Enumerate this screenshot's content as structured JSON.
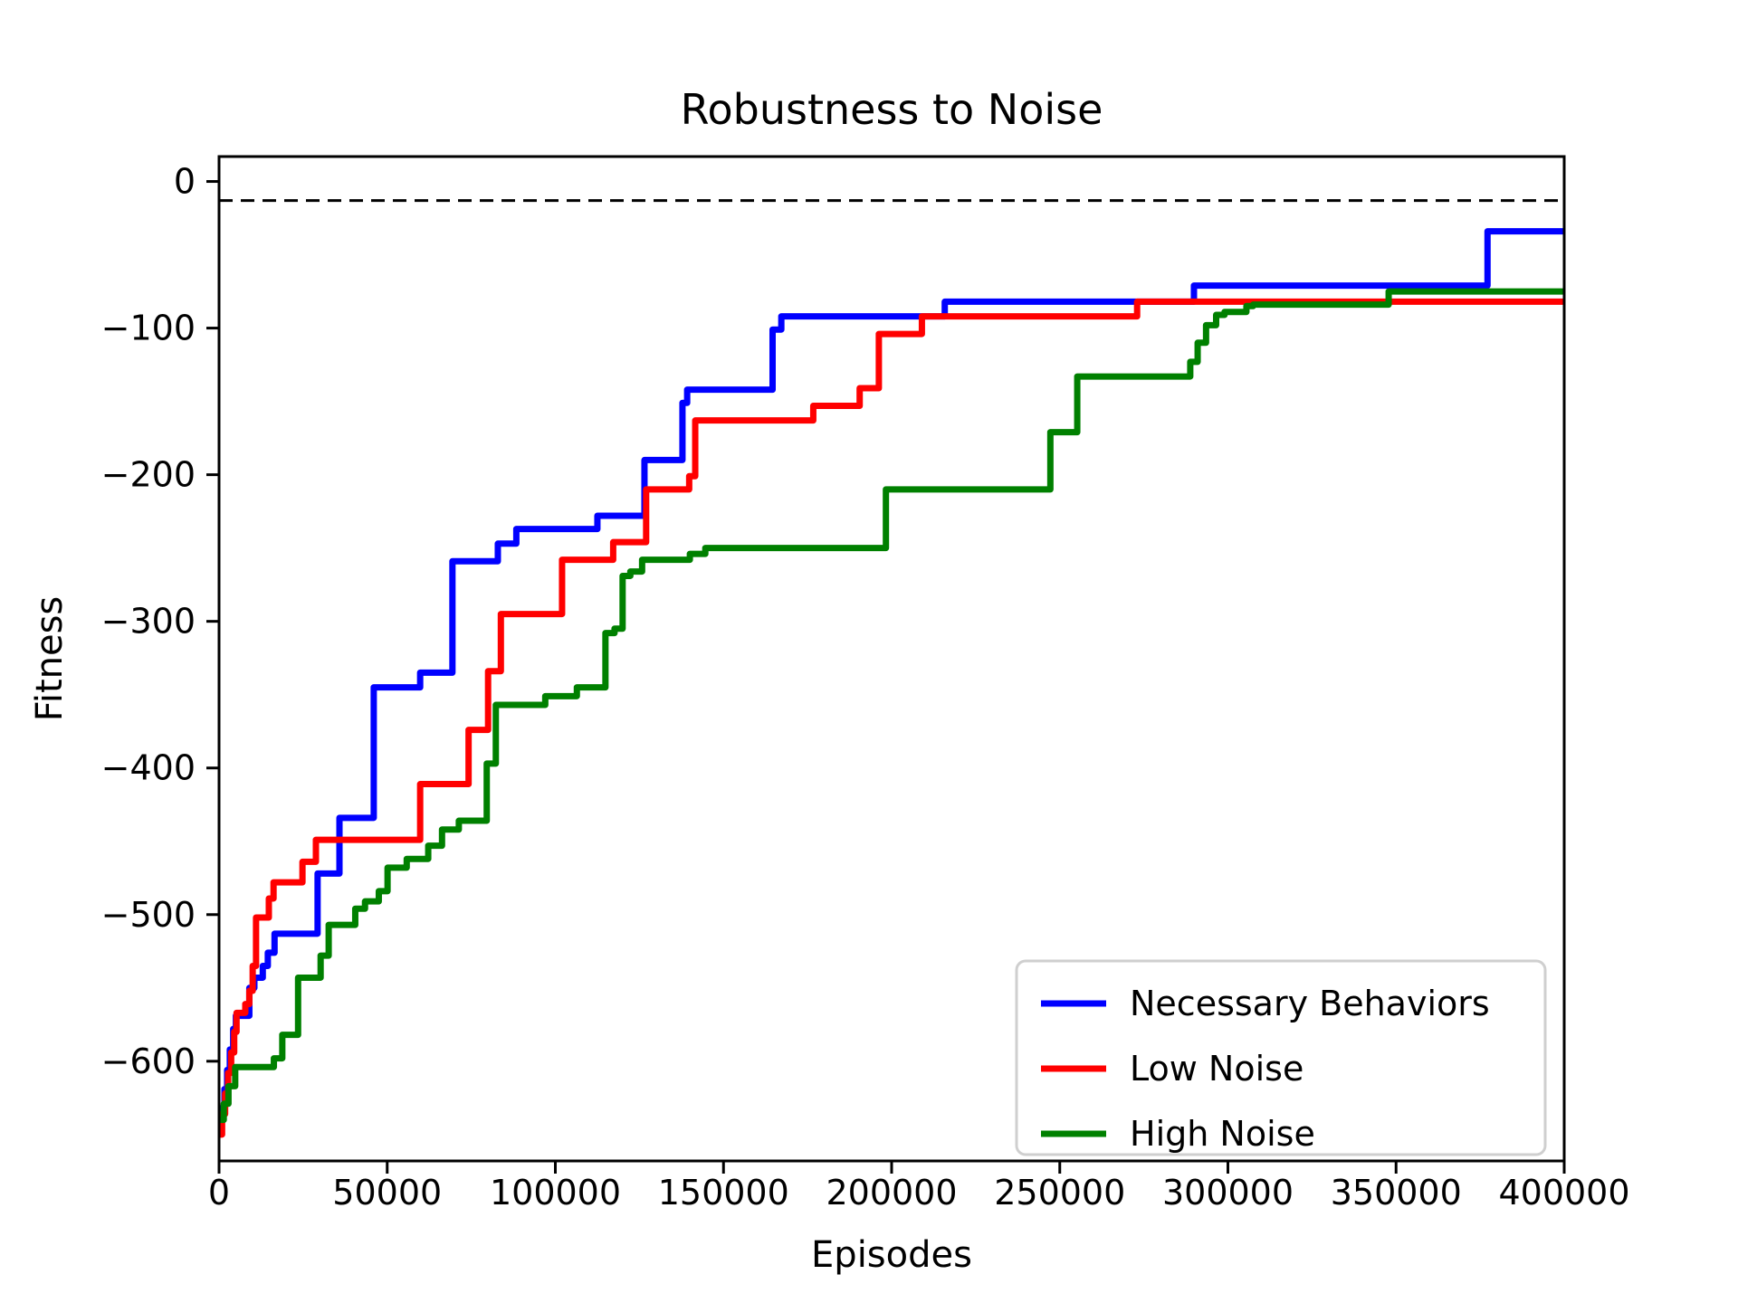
{
  "chart_data": {
    "type": "line",
    "title": "Robustness to Noise",
    "xlabel": "Episodes",
    "ylabel": "Fitness",
    "xlim": [
      0,
      400000
    ],
    "ylim": [
      -668,
      17
    ],
    "x_ticks": [
      0,
      50000,
      100000,
      150000,
      200000,
      250000,
      300000,
      350000,
      400000
    ],
    "y_ticks": [
      0,
      -100,
      -200,
      -300,
      -400,
      -500,
      -600
    ],
    "grid": false,
    "legend_position": "lower right",
    "threshold_line": {
      "y": -13,
      "style": "dashed",
      "color": "#000000"
    },
    "series": [
      {
        "name": "Necessary Behaviors",
        "color": "#0000ff",
        "step": "post",
        "points": [
          [
            0,
            -645
          ],
          [
            800,
            -632
          ],
          [
            1600,
            -619
          ],
          [
            2400,
            -606
          ],
          [
            3200,
            -592
          ],
          [
            4200,
            -578
          ],
          [
            5000,
            -569
          ],
          [
            9000,
            -550
          ],
          [
            10500,
            -543
          ],
          [
            13000,
            -535
          ],
          [
            14500,
            -526
          ],
          [
            16500,
            -513
          ],
          [
            29300,
            -472
          ],
          [
            35800,
            -434
          ],
          [
            46000,
            -345
          ],
          [
            59800,
            -335
          ],
          [
            69400,
            -259
          ],
          [
            82900,
            -247
          ],
          [
            88400,
            -237
          ],
          [
            112500,
            -228
          ],
          [
            126500,
            -190
          ],
          [
            137800,
            -151
          ],
          [
            139200,
            -142
          ],
          [
            164600,
            -101
          ],
          [
            167200,
            -92
          ],
          [
            215800,
            -82
          ],
          [
            289900,
            -71
          ],
          [
            377200,
            -34
          ]
        ]
      },
      {
        "name": "Low Noise",
        "color": "#ff0000",
        "step": "post",
        "points": [
          [
            0,
            -650
          ],
          [
            900,
            -636
          ],
          [
            1800,
            -622
          ],
          [
            2700,
            -608
          ],
          [
            3600,
            -594
          ],
          [
            4500,
            -580
          ],
          [
            5200,
            -567
          ],
          [
            7800,
            -561
          ],
          [
            9000,
            -552
          ],
          [
            10000,
            -535
          ],
          [
            11000,
            -502
          ],
          [
            14800,
            -489
          ],
          [
            16200,
            -478
          ],
          [
            24800,
            -464
          ],
          [
            28800,
            -449
          ],
          [
            59800,
            -411
          ],
          [
            74200,
            -374
          ],
          [
            80000,
            -334
          ],
          [
            83800,
            -295
          ],
          [
            102000,
            -258
          ],
          [
            117200,
            -246
          ],
          [
            127000,
            -210
          ],
          [
            139800,
            -201
          ],
          [
            141600,
            -163
          ],
          [
            176700,
            -153
          ],
          [
            190500,
            -141
          ],
          [
            196200,
            -104
          ],
          [
            209000,
            -92
          ],
          [
            273000,
            -82
          ]
        ]
      },
      {
        "name": "High Noise",
        "color": "#008000",
        "step": "post",
        "points": [
          [
            0,
            -640
          ],
          [
            1400,
            -629
          ],
          [
            2800,
            -617
          ],
          [
            4800,
            -604
          ],
          [
            16300,
            -598
          ],
          [
            18800,
            -582
          ],
          [
            23500,
            -543
          ],
          [
            30200,
            -528
          ],
          [
            32600,
            -507
          ],
          [
            40500,
            -496
          ],
          [
            43400,
            -491
          ],
          [
            47500,
            -484
          ],
          [
            50100,
            -468
          ],
          [
            55800,
            -462
          ],
          [
            62200,
            -453
          ],
          [
            66300,
            -442
          ],
          [
            71300,
            -436
          ],
          [
            79600,
            -397
          ],
          [
            82300,
            -357
          ],
          [
            97000,
            -351
          ],
          [
            106400,
            -345
          ],
          [
            114900,
            -308
          ],
          [
            117600,
            -305
          ],
          [
            120000,
            -269
          ],
          [
            122300,
            -266
          ],
          [
            125800,
            -258
          ],
          [
            140000,
            -254
          ],
          [
            144600,
            -250
          ],
          [
            198300,
            -210
          ],
          [
            247200,
            -171
          ],
          [
            255200,
            -133
          ],
          [
            288800,
            -123
          ],
          [
            291000,
            -110
          ],
          [
            293500,
            -98
          ],
          [
            296500,
            -91
          ],
          [
            299000,
            -89
          ],
          [
            305500,
            -85
          ],
          [
            307500,
            -84
          ],
          [
            347800,
            -75
          ]
        ]
      }
    ]
  }
}
